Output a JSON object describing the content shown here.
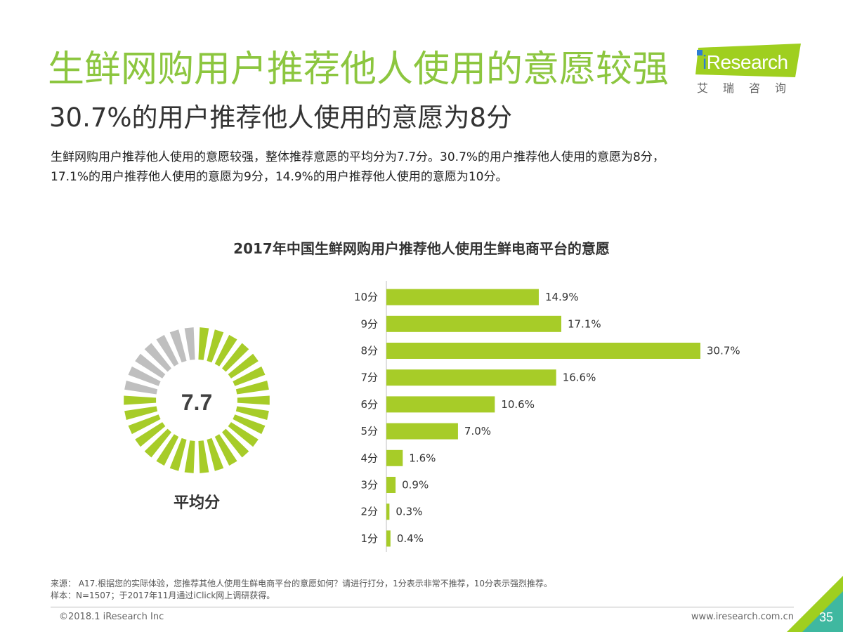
{
  "header": {
    "title": "生鲜网购用户推荐他人使用的意愿较强",
    "subtitle": "30.7%的用户推荐他人使用的意愿为8分",
    "intro_line1": "生鲜网购用户推荐他人使用的意愿较强，整体推荐意愿的平均分为7.7分。30.7%的用户推荐他人使用的意愿为8分，",
    "intro_line2": "17.1%的用户推荐他人使用的意愿为9分，14.9%的用户推荐他人使用的意愿为10分。"
  },
  "logo": {
    "text": "iResearch",
    "text_rest": "Research",
    "sub": "艾瑞咨询",
    "colors": {
      "green": "#9fcf1f",
      "blue": "#2d7dd2"
    }
  },
  "gauge": {
    "value": "7.7",
    "label": "平均分",
    "fraction": 0.77,
    "colors": {
      "filled": "#a7cc28",
      "empty": "#bfbfbf"
    }
  },
  "chart_data": {
    "type": "bar",
    "orientation": "horizontal",
    "title": "2017年中国生鲜网购用户推荐他人使用生鲜电商平台的意愿",
    "categories": [
      "10分",
      "9分",
      "8分",
      "7分",
      "6分",
      "5分",
      "4分",
      "3分",
      "2分",
      "1分"
    ],
    "values": [
      14.9,
      17.1,
      30.7,
      16.6,
      10.6,
      7.0,
      1.6,
      0.9,
      0.3,
      0.4
    ],
    "value_labels": [
      "14.9%",
      "17.1%",
      "30.7%",
      "16.6%",
      "10.6%",
      "7.0%",
      "1.6%",
      "0.9%",
      "0.3%",
      "0.4%"
    ],
    "xlim": [
      0,
      30.7
    ],
    "grid": false,
    "legend": "none",
    "bar_color": "#a7cc28"
  },
  "footer": {
    "source_line": "来源：   A17.根据您的实际体验，您推荐其他人使用生鲜电商平台的意愿如何？请进行打分，1分表示非常不推荐，10分表示强烈推荐。",
    "sample_line": "样本：N=1507；于2017年11月通过iClick网上调研获得。",
    "copyright": "©2018.1 iResearch Inc",
    "url": "www.iresearch.com.cn",
    "page_number": "35",
    "colors": {
      "corner_green": "#9fcf1f",
      "corner_teal": "#3fb8a0"
    }
  }
}
